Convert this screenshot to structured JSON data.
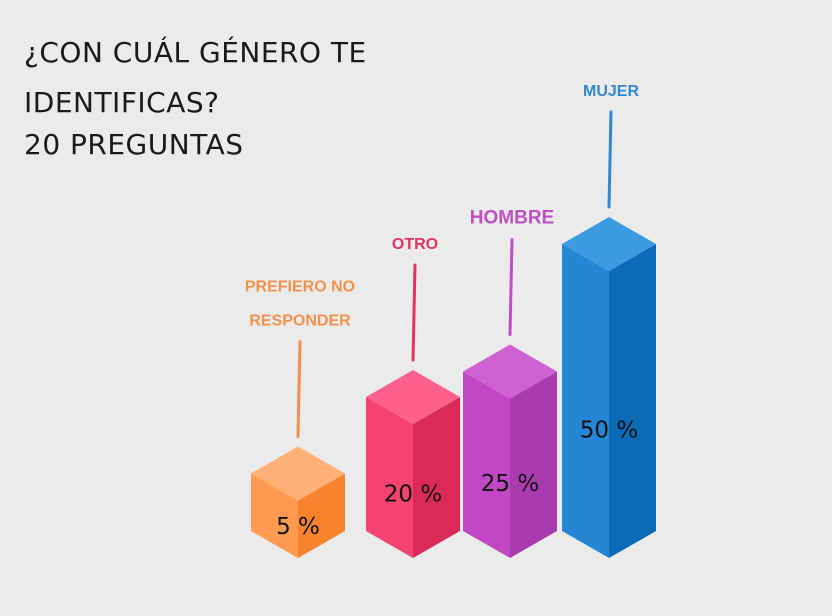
{
  "title_lines": [
    "¿CON CUÁL GÉNERO TE",
    "IDENTIFICAS?",
    "20 PREGUNTAS"
  ],
  "chart_data": {
    "type": "bar",
    "title": "¿CON CUÁL GÉNERO TE IDENTIFICAS? 20 PREGUNTAS",
    "categories": [
      "PREFIERO NO RESPONDER",
      "OTRO",
      "HOMBRE",
      "MUJER"
    ],
    "category_label_lines": [
      [
        "PREFIERO NO",
        "RESPONDER"
      ],
      [
        "OTRO"
      ],
      [
        "HOMBRE"
      ],
      [
        "MUJER"
      ]
    ],
    "values": [
      5,
      20,
      25,
      50
    ],
    "value_labels": [
      "5 %",
      "20 %",
      "25 %",
      "50 %"
    ],
    "unit": "%",
    "colors": {
      "top": [
        "#ffb074",
        "#ff5f8c",
        "#cf62d1",
        "#3b9be0"
      ],
      "front": [
        "#ff9a50",
        "#f5426f",
        "#c247c6",
        "#2486d4"
      ],
      "side": [
        "#f7832e",
        "#db2a57",
        "#a93bae",
        "#0b6bb8"
      ],
      "label": [
        "#f5904a",
        "#e2325f",
        "#c04ec4",
        "#3189d2"
      ]
    },
    "grid": false,
    "legend": "none"
  }
}
